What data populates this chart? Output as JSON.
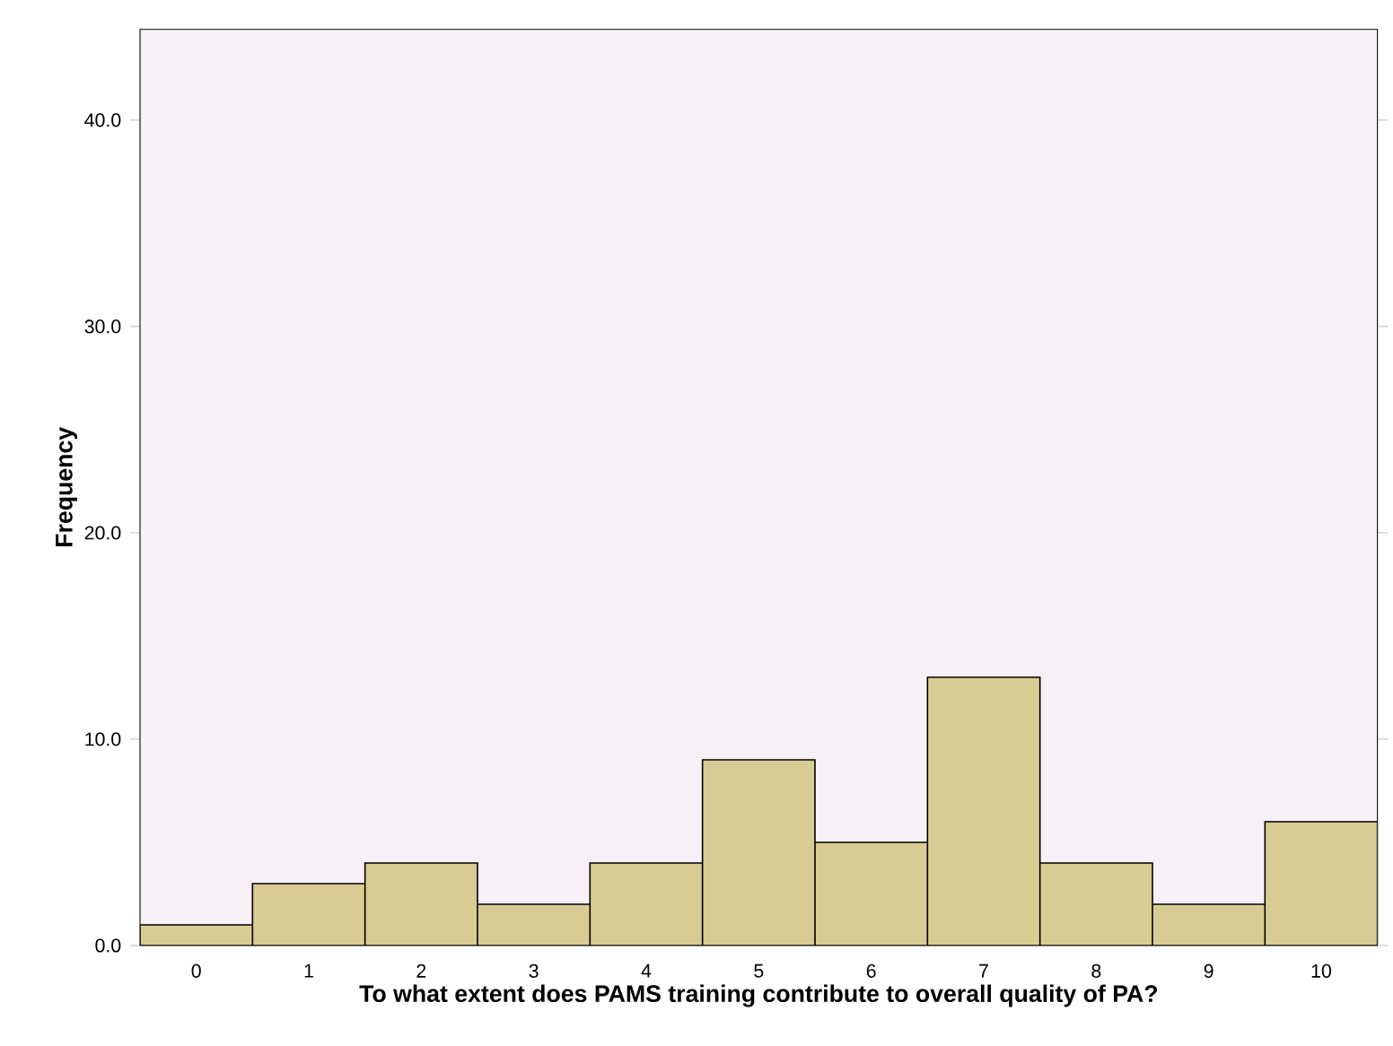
{
  "chart_data": {
    "type": "bar",
    "xlabel": "To what extent does PAMS training contribute to overall quality of PA?",
    "ylabel": "Frequency",
    "categories": [
      "0",
      "1",
      "2",
      "3",
      "4",
      "5",
      "6",
      "7",
      "8",
      "9",
      "10"
    ],
    "values": [
      1,
      3,
      4,
      2,
      4,
      9,
      5,
      13,
      4,
      2,
      6
    ],
    "color": "#d8cc94",
    "ylim": [
      0,
      44.4
    ],
    "yticks": [
      {
        "value": 0,
        "label": "0.0"
      },
      {
        "value": 10,
        "label": "10.0"
      },
      {
        "value": 20,
        "label": "20.0"
      },
      {
        "value": 30,
        "label": "30.0"
      },
      {
        "value": 40,
        "label": "40.0"
      }
    ]
  }
}
